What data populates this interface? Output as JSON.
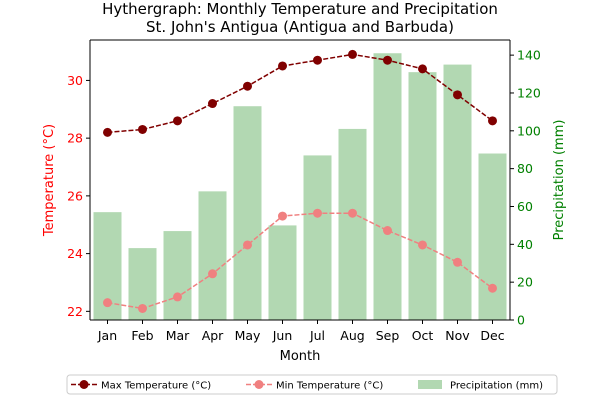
{
  "chart_data": {
    "type": "bar+line",
    "title": "Hythergraph: Monthly Temperature and Precipitation",
    "subtitle": "St. John's Antigua (Antigua and Barbuda)",
    "xlabel": "Month",
    "ylabel_left": "Temperature (°C)",
    "ylabel_right": "Precipitation (mm)",
    "categories": [
      "Jan",
      "Feb",
      "Mar",
      "Apr",
      "May",
      "Jun",
      "Jul",
      "Aug",
      "Sep",
      "Oct",
      "Nov",
      "Dec"
    ],
    "ylim_left": [
      21.7,
      31.4
    ],
    "ylim_right": [
      0,
      148
    ],
    "yticks_left": [
      22,
      24,
      26,
      28,
      30
    ],
    "yticks_right": [
      0,
      20,
      40,
      60,
      80,
      100,
      120,
      140
    ],
    "grid": false,
    "legend_position": "bottom",
    "colors": {
      "max_temp": "#800000",
      "min_temp": "#f08080",
      "precip": "#b2d8b2",
      "left_axis": "#ff0000",
      "right_axis": "#008000"
    },
    "series": [
      {
        "name": "Max Temperature (°C)",
        "kind": "line",
        "axis": "left",
        "values": [
          28.2,
          28.3,
          28.6,
          29.2,
          29.8,
          30.5,
          30.7,
          30.9,
          30.7,
          30.4,
          29.5,
          28.6
        ]
      },
      {
        "name": "Min Temperature (°C)",
        "kind": "line",
        "axis": "left",
        "values": [
          22.3,
          22.1,
          22.5,
          23.3,
          24.3,
          25.3,
          25.4,
          25.4,
          24.8,
          24.3,
          23.7,
          22.8
        ]
      },
      {
        "name": "Precipitation (mm)",
        "kind": "bar",
        "axis": "right",
        "values": [
          57,
          38,
          47,
          68,
          113,
          50,
          87,
          101,
          141,
          131,
          135,
          88
        ]
      }
    ]
  }
}
